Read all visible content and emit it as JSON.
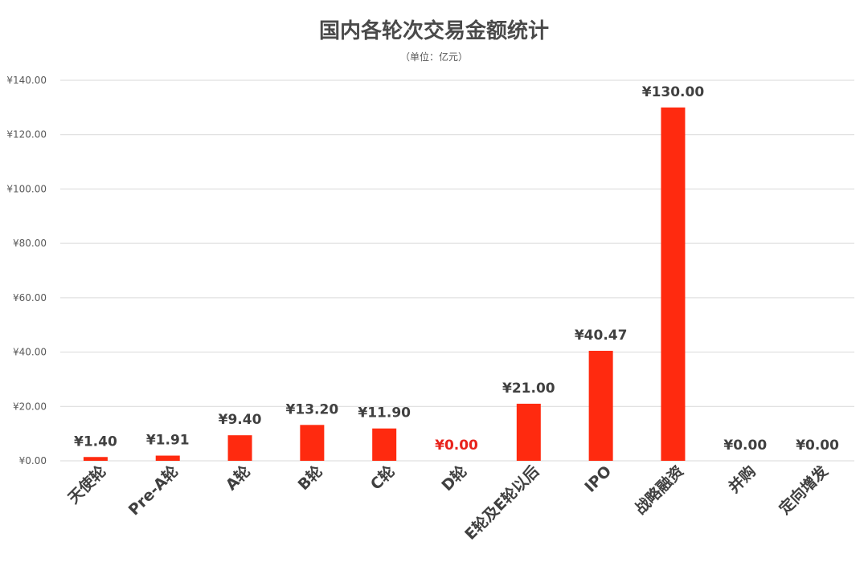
{
  "chart_data": {
    "type": "bar",
    "title": "国内各轮次交易金额统计",
    "subtitle": "（单位：亿元）",
    "categories": [
      "天使轮",
      "Pre-A轮",
      "A轮",
      "B轮",
      "C轮",
      "D轮",
      "E轮及E轮以后",
      "IPO",
      "战略融资",
      "并购",
      "定向增发"
    ],
    "values": [
      1.4,
      1.91,
      9.4,
      13.2,
      11.9,
      0.0,
      21.0,
      40.47,
      130.0,
      0.0,
      0.0
    ],
    "value_labels": [
      "¥1.40",
      "¥1.91",
      "¥9.40",
      "¥13.20",
      "¥11.90",
      "¥0.00",
      "¥21.00",
      "¥40.47",
      "¥130.00",
      "¥0.00",
      "¥0.00"
    ],
    "highlight_label_index": 5,
    "ylim": [
      0,
      140
    ],
    "yticks": [
      0,
      20,
      40,
      60,
      80,
      100,
      120,
      140
    ],
    "ytick_labels": [
      "¥0.00",
      "¥20.00",
      "¥40.00",
      "¥60.00",
      "¥80.00",
      "¥100.00",
      "¥120.00",
      "¥140.00"
    ],
    "xlabel": "",
    "ylabel": "",
    "grid": true,
    "legend": "none",
    "bar_color": "#ff2a0f",
    "highlight_label_color": "#e8231c",
    "label_color": "#404040",
    "title_color": "#4a4a4a",
    "tick_label_color": "#595959",
    "grid_color": "#d9d9d9"
  }
}
